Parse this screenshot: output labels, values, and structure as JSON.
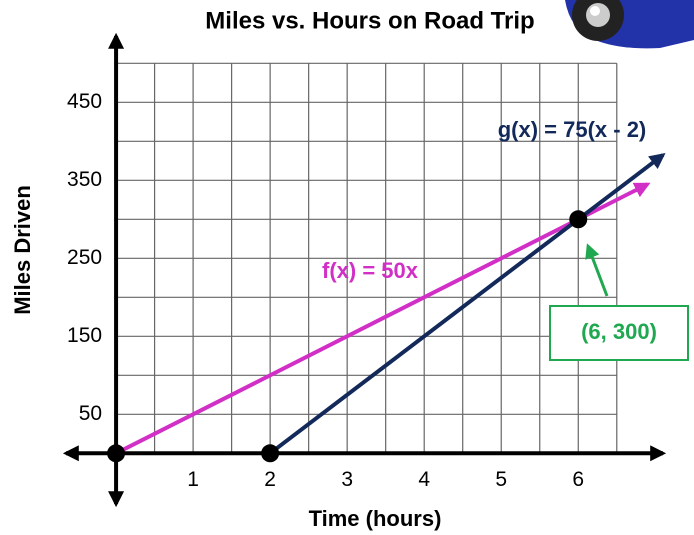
{
  "chart_data": {
    "type": "line",
    "title": "Miles vs. Hours on Road Trip",
    "x_label": "Time (hours)",
    "y_label": "Miles Driven",
    "xlim": [
      -0.65,
      7.1
    ],
    "ylim": [
      -65,
      535
    ],
    "xticks": [
      1,
      2,
      3,
      4,
      5,
      6
    ],
    "yticks": [
      50,
      150,
      250,
      350,
      450
    ],
    "grid": true,
    "xgrid": [
      0,
      0.5,
      1,
      1.5,
      2,
      2.5,
      3,
      3.5,
      4,
      4.5,
      5,
      5.5,
      6,
      6.5
    ],
    "ygrid": [
      0,
      50,
      100,
      150,
      200,
      250,
      300,
      350,
      400,
      450,
      500
    ],
    "series": [
      {
        "name": "f(x) = 50x",
        "color": "#d12fc6",
        "x": [
          0,
          6.9
        ],
        "values": [
          0,
          345
        ]
      },
      {
        "name": "g(x) = 75(x - 2)",
        "color": "#12295a",
        "x": [
          2,
          7.1
        ],
        "values": [
          0,
          382.5
        ]
      }
    ],
    "points": {
      "x": [
        0,
        2,
        6
      ],
      "values": [
        0,
        0,
        300
      ]
    },
    "annotation": {
      "text": "(6, 300)",
      "color": "#1fa84f"
    }
  }
}
